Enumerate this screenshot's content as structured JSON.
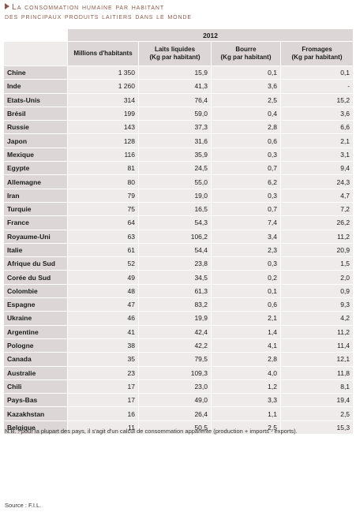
{
  "title": {
    "line1": "La consommation humaine par habitant",
    "line2": "des principaux produits laitiers dans le monde"
  },
  "table": {
    "year": "2012",
    "headers": [
      {
        "main": "Millions d'habitants",
        "sub": ""
      },
      {
        "main": "Laits liquides",
        "sub": "(Kg par habitant)"
      },
      {
        "main": "Bourre",
        "sub": "(Kg par habitant)"
      },
      {
        "main": "Fromages",
        "sub": "(Kg par habitant)"
      }
    ],
    "rows": [
      {
        "country": "Chine",
        "population": "1 350",
        "milk": "15,9",
        "butter": "0,1",
        "cheese": "0,1"
      },
      {
        "country": "Inde",
        "population": "1 260",
        "milk": "41,3",
        "butter": "3,6",
        "cheese": "-"
      },
      {
        "country": "Etats-Unis",
        "population": "314",
        "milk": "76,4",
        "butter": "2,5",
        "cheese": "15,2"
      },
      {
        "country": "Brésil",
        "population": "199",
        "milk": "59,0",
        "butter": "0,4",
        "cheese": "3,6"
      },
      {
        "country": "Russie",
        "population": "143",
        "milk": "37,3",
        "butter": "2,8",
        "cheese": "6,6"
      },
      {
        "country": "Japon",
        "population": "128",
        "milk": "31,6",
        "butter": "0,6",
        "cheese": "2,1"
      },
      {
        "country": "Mexique",
        "population": "116",
        "milk": "35,9",
        "butter": "0,3",
        "cheese": "3,1"
      },
      {
        "country": "Egypte",
        "population": "81",
        "milk": "24,5",
        "butter": "0,7",
        "cheese": "9,4"
      },
      {
        "country": "Allemagne",
        "population": "80",
        "milk": "55,0",
        "butter": "6,2",
        "cheese": "24,3"
      },
      {
        "country": "Iran",
        "population": "79",
        "milk": "19,0",
        "butter": "0,3",
        "cheese": "4,7"
      },
      {
        "country": "Turquie",
        "population": "75",
        "milk": "16,5",
        "butter": "0,7",
        "cheese": "7,2"
      },
      {
        "country": "France",
        "population": "64",
        "milk": "54,3",
        "butter": "7,4",
        "cheese": "26,2"
      },
      {
        "country": "Royaume-Uni",
        "population": "63",
        "milk": "106,2",
        "butter": "3,4",
        "cheese": "11,2"
      },
      {
        "country": "Italie",
        "population": "61",
        "milk": "54,4",
        "butter": "2,3",
        "cheese": "20,9"
      },
      {
        "country": "Afrique du Sud",
        "population": "52",
        "milk": "23,8",
        "butter": "0,3",
        "cheese": "1,5"
      },
      {
        "country": "Corée du Sud",
        "population": "49",
        "milk": "34,5",
        "butter": "0,2",
        "cheese": "2,0"
      },
      {
        "country": "Colombie",
        "population": "48",
        "milk": "61,3",
        "butter": "0,1",
        "cheese": "0,9"
      },
      {
        "country": "Espagne",
        "population": "47",
        "milk": "83,2",
        "butter": "0,6",
        "cheese": "9,3"
      },
      {
        "country": "Ukraine",
        "population": "46",
        "milk": "19,9",
        "butter": "2,1",
        "cheese": "4,2"
      },
      {
        "country": "Argentine",
        "population": "41",
        "milk": "42,4",
        "butter": "1,4",
        "cheese": "11,2"
      },
      {
        "country": "Pologne",
        "population": "38",
        "milk": "42,2",
        "butter": "4,1",
        "cheese": "11,4"
      },
      {
        "country": "Canada",
        "population": "35",
        "milk": "79,5",
        "butter": "2,8",
        "cheese": "12,1"
      },
      {
        "country": "Australie",
        "population": "23",
        "milk": "109,3",
        "butter": "4,0",
        "cheese": "11,8"
      },
      {
        "country": "Chili",
        "population": "17",
        "milk": "23,0",
        "butter": "1,2",
        "cheese": "8,1"
      },
      {
        "country": "Pays-Bas",
        "population": "17",
        "milk": "49,0",
        "butter": "3,3",
        "cheese": "19,4"
      },
      {
        "country": "Kazakhstan",
        "population": "16",
        "milk": "26,4",
        "butter": "1,1",
        "cheese": "2,5"
      },
      {
        "country": "Belgique",
        "population": "11",
        "milk": "50,5",
        "butter": "2,5",
        "cheese": "15,3"
      }
    ]
  },
  "note": "N.B. : pour la plupart des pays, il s'agit d'un calcul de consommation apparente (production + imports - exports).",
  "source": "Source : F.I.L.",
  "colors": {
    "accent": "#8c5a4a",
    "header_bg": "#dcd7d6",
    "cell_bg": "#eeebea"
  }
}
